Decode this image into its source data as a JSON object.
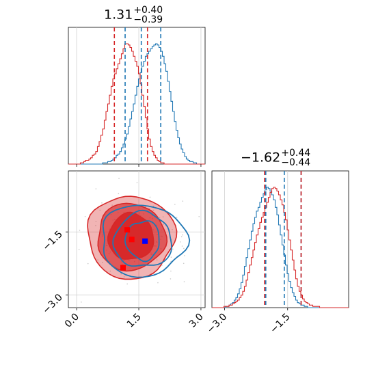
{
  "chart_data": {
    "type": "corner",
    "colors": {
      "series_a": "#1f77b4",
      "series_b": "#d62728",
      "grid": "#d0d0d0",
      "marker_a": "#0000ff",
      "marker_b": "#ff0000"
    },
    "param1": {
      "title": {
        "value": "1.31",
        "plus": "+0.40",
        "minus": "−0.39"
      },
      "ticks": [
        0.0,
        1.5,
        3.0
      ],
      "tick_labels": [
        "0.0",
        "1.5",
        "3.0"
      ],
      "range": [
        -0.2,
        3.1
      ],
      "series_a_quantiles": [
        1.17,
        1.56,
        2.03
      ],
      "series_b_quantiles": [
        0.91,
        1.31,
        1.71
      ],
      "hist_grid": [
        -0.2,
        3.1
      ],
      "series_a_hist": [
        0,
        0,
        0,
        0,
        0,
        0,
        0,
        0,
        0,
        0,
        0,
        0,
        0,
        0,
        0,
        0,
        0,
        0,
        0,
        0,
        1,
        1,
        1,
        2,
        2,
        3,
        4,
        5,
        7,
        8,
        10,
        13,
        16,
        20,
        24,
        30,
        36,
        42,
        48,
        55,
        62,
        68,
        73,
        78,
        82,
        86,
        88,
        90,
        92,
        94,
        95,
        96,
        95,
        93,
        90,
        86,
        80,
        74,
        66,
        58,
        50,
        42,
        34,
        27,
        21,
        16,
        12,
        9,
        6,
        4,
        3,
        2,
        2,
        1,
        1,
        0,
        0,
        0,
        0,
        0
      ],
      "series_b_hist": [
        0,
        0,
        0,
        0,
        0,
        0,
        0,
        1,
        1,
        2,
        3,
        3,
        4,
        5,
        7,
        8,
        10,
        14,
        18,
        23,
        28,
        35,
        42,
        48,
        55,
        62,
        68,
        72,
        76,
        80,
        84,
        88,
        92,
        96,
        96,
        95,
        93,
        90,
        86,
        82,
        78,
        72,
        64,
        55,
        46,
        37,
        28,
        20,
        14,
        10,
        7,
        5,
        3,
        2,
        1,
        1,
        0,
        0,
        0,
        0,
        0,
        0,
        0,
        0,
        0,
        0,
        0,
        0,
        0,
        0,
        0,
        0,
        0,
        0,
        0,
        0,
        0,
        0,
        0,
        0
      ]
    },
    "param2": {
      "title": {
        "value": "−1.62",
        "plus": "+0.44",
        "minus": "−0.44"
      },
      "ticks": [
        -3.0,
        -1.5
      ],
      "tick_labels": [
        "−3.0",
        "−1.5"
      ],
      "range": [
        -3.3,
        -0.05
      ],
      "series_a_quantiles": [
        -2.02,
        -1.58,
        -1.18
      ],
      "series_b_quantiles": [
        -2.05,
        -1.62,
        -1.18
      ],
      "series_a_hist": [
        0,
        0,
        0,
        0,
        0,
        0,
        0,
        0,
        1,
        1,
        2,
        3,
        4,
        6,
        8,
        11,
        15,
        20,
        26,
        33,
        40,
        47,
        54,
        61,
        67,
        72,
        77,
        80,
        84,
        88,
        91,
        94,
        96,
        95,
        93,
        90,
        86,
        80,
        74,
        66,
        58,
        50,
        42,
        34,
        27,
        21,
        16,
        12,
        9,
        6,
        4,
        3,
        2,
        2,
        1,
        1,
        0,
        0,
        0,
        0,
        0,
        0,
        0,
        0,
        0,
        0,
        0,
        0,
        0,
        0,
        0,
        0,
        0,
        0,
        0,
        0,
        0,
        0,
        0,
        0
      ],
      "series_b_hist": [
        0,
        0,
        0,
        0,
        0,
        0,
        0,
        1,
        1,
        1,
        2,
        2,
        3,
        4,
        5,
        6,
        8,
        10,
        13,
        17,
        22,
        28,
        34,
        40,
        46,
        52,
        58,
        63,
        68,
        72,
        76,
        80,
        84,
        88,
        92,
        95,
        96,
        95,
        93,
        90,
        86,
        82,
        76,
        70,
        62,
        54,
        46,
        38,
        30,
        23,
        17,
        13,
        10,
        7,
        5,
        4,
        3,
        2,
        2,
        1,
        1,
        1,
        1,
        0,
        0,
        0,
        0,
        0,
        0,
        0,
        0,
        0,
        0,
        0,
        0,
        0,
        0,
        0,
        0,
        0
      ]
    },
    "scatter": {
      "series_a_center": [
        1.6,
        -1.7
      ],
      "series_b_center": [
        1.31,
        -1.62
      ],
      "series_a_contours": [
        [
          1.25,
          0.55
        ],
        [
          0.85,
          0.42
        ],
        [
          0.5,
          0.3
        ]
      ],
      "series_b_contours": [
        [
          1.35,
          0.68
        ],
        [
          1.05,
          0.55
        ],
        [
          0.7,
          0.38
        ]
      ],
      "markers_a": [
        [
          1.65,
          -1.72
        ]
      ],
      "markers_b": [
        [
          1.22,
          -1.45
        ],
        [
          1.33,
          -1.68
        ],
        [
          1.12,
          -2.35
        ]
      ]
    }
  }
}
